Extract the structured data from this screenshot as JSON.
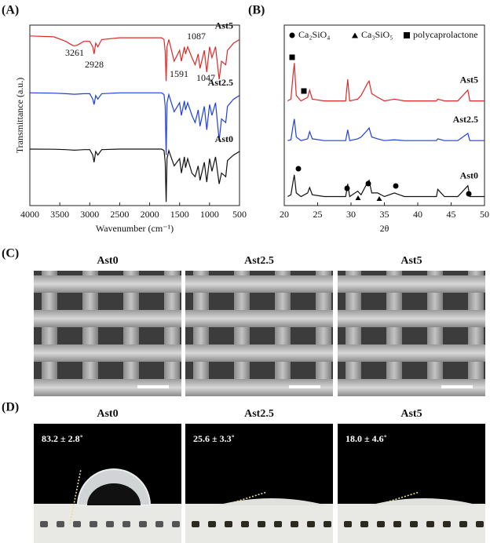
{
  "panels": {
    "a": "(A)",
    "b": "(B)",
    "c": "(C)",
    "d": "(D)"
  },
  "chart_data": [
    {
      "type": "line",
      "xlabel": "Wavenumber (cm⁻¹)",
      "ylabel": "Transmittance (a.u.)",
      "x": [
        4000,
        3600,
        3400,
        3300,
        3261,
        3200,
        3100,
        3000,
        2950,
        2928,
        2900,
        2865,
        2800,
        2500,
        2000,
        1800,
        1760,
        1740,
        1725,
        1710,
        1680,
        1591,
        1500,
        1470,
        1420,
        1400,
        1365,
        1295,
        1240,
        1190,
        1160,
        1087,
        1047,
        1000,
        960,
        900,
        840,
        800,
        730,
        700,
        600,
        500
      ],
      "xlim": [
        4000,
        500
      ],
      "xticks": [
        4000,
        3500,
        3000,
        2500,
        2000,
        1500,
        1000,
        500
      ],
      "ylim": [
        0,
        100
      ],
      "series": [
        {
          "name": "Ast5",
          "color": "#e02828",
          "values": [
            94,
            93.5,
            91,
            89,
            88.5,
            89,
            91,
            91,
            88,
            84,
            90,
            88,
            92,
            93,
            93,
            93,
            92,
            85,
            69,
            88,
            92,
            80,
            86,
            80,
            88,
            84,
            88,
            82,
            78,
            84,
            76,
            86,
            74,
            88,
            82,
            88,
            70,
            80,
            78,
            86,
            90,
            92
          ]
        },
        {
          "name": "Ast2.5",
          "color": "#1f3fe0",
          "values": [
            62.5,
            62.3,
            62,
            61.8,
            61.7,
            61.8,
            62,
            62,
            59,
            56,
            61,
            59,
            62,
            62.5,
            62.5,
            62.5,
            61.5,
            55,
            28,
            57,
            61.5,
            52,
            57,
            50,
            58,
            53,
            57,
            50,
            46,
            53,
            44,
            55,
            42,
            56,
            50,
            57,
            36,
            48,
            46,
            55,
            59,
            61
          ]
        },
        {
          "name": "Ast0",
          "color": "#111111",
          "values": [
            31.3,
            31.2,
            31,
            30.8,
            30.7,
            30.8,
            31,
            31,
            28,
            24,
            30,
            28,
            31,
            31.3,
            31.3,
            31.3,
            30.5,
            24,
            2,
            26,
            30.5,
            22,
            26,
            18,
            27,
            21,
            26,
            18,
            16,
            22,
            14,
            24,
            13,
            26,
            19,
            27,
            12,
            18,
            16,
            25,
            28,
            30
          ]
        }
      ],
      "annotations": [
        "3261",
        "2928",
        "1087",
        "1591",
        "1047"
      ]
    },
    {
      "type": "line",
      "xlabel": "2θ",
      "x": [
        20.5,
        21,
        21.3,
        21.5,
        21.8,
        22.5,
        23.5,
        23.8,
        24.2,
        26,
        29.2,
        29.5,
        29.8,
        31,
        31.5,
        32.5,
        32.7,
        33.1,
        34,
        35,
        36.5,
        38,
        40,
        42.8,
        43,
        44,
        46,
        47.5,
        47.8,
        50
      ],
      "xlim": [
        20,
        50
      ],
      "xticks": [
        20,
        25,
        30,
        35,
        40,
        45,
        50
      ],
      "ylim": [
        0,
        100
      ],
      "legend": [
        "Ca₂SiO₄",
        "Ca₃SiO₅",
        "polycaprolactone"
      ],
      "series": [
        {
          "name": "Ast5",
          "color": "#e02828",
          "values": [
            58,
            59,
            72,
            79,
            61,
            58,
            60,
            64,
            59,
            58,
            58,
            70,
            58,
            59,
            61,
            68,
            69,
            62,
            60,
            58,
            59,
            58,
            58,
            58,
            59,
            58,
            58,
            64,
            58,
            58
          ]
        },
        {
          "name": "Ast2.5",
          "color": "#1f3fe0",
          "values": [
            36,
            36.5,
            44,
            48,
            38,
            36,
            37,
            41,
            37,
            36,
            36,
            42,
            36,
            37,
            38,
            42,
            43,
            38,
            37,
            36,
            36.5,
            36,
            36,
            36,
            37,
            36,
            36,
            40,
            36,
            36
          ]
        },
        {
          "name": "Ast0",
          "color": "#111111",
          "values": [
            5,
            6,
            13,
            17,
            7,
            5,
            7,
            10,
            6,
            5,
            5,
            12,
            5,
            8,
            6,
            13,
            14,
            7,
            7,
            5,
            7,
            5,
            5,
            5,
            9,
            5,
            5,
            11,
            5,
            5
          ]
        }
      ]
    }
  ],
  "sem": {
    "titles": [
      "Ast0",
      "Ast2.5",
      "Ast5"
    ]
  },
  "contact": {
    "titles": [
      "Ast0",
      "Ast2.5",
      "Ast5"
    ],
    "angles": [
      "83.2 ± 2.8˚",
      "25.6 ± 3.3˚",
      "18.0 ± 4.6˚"
    ]
  }
}
